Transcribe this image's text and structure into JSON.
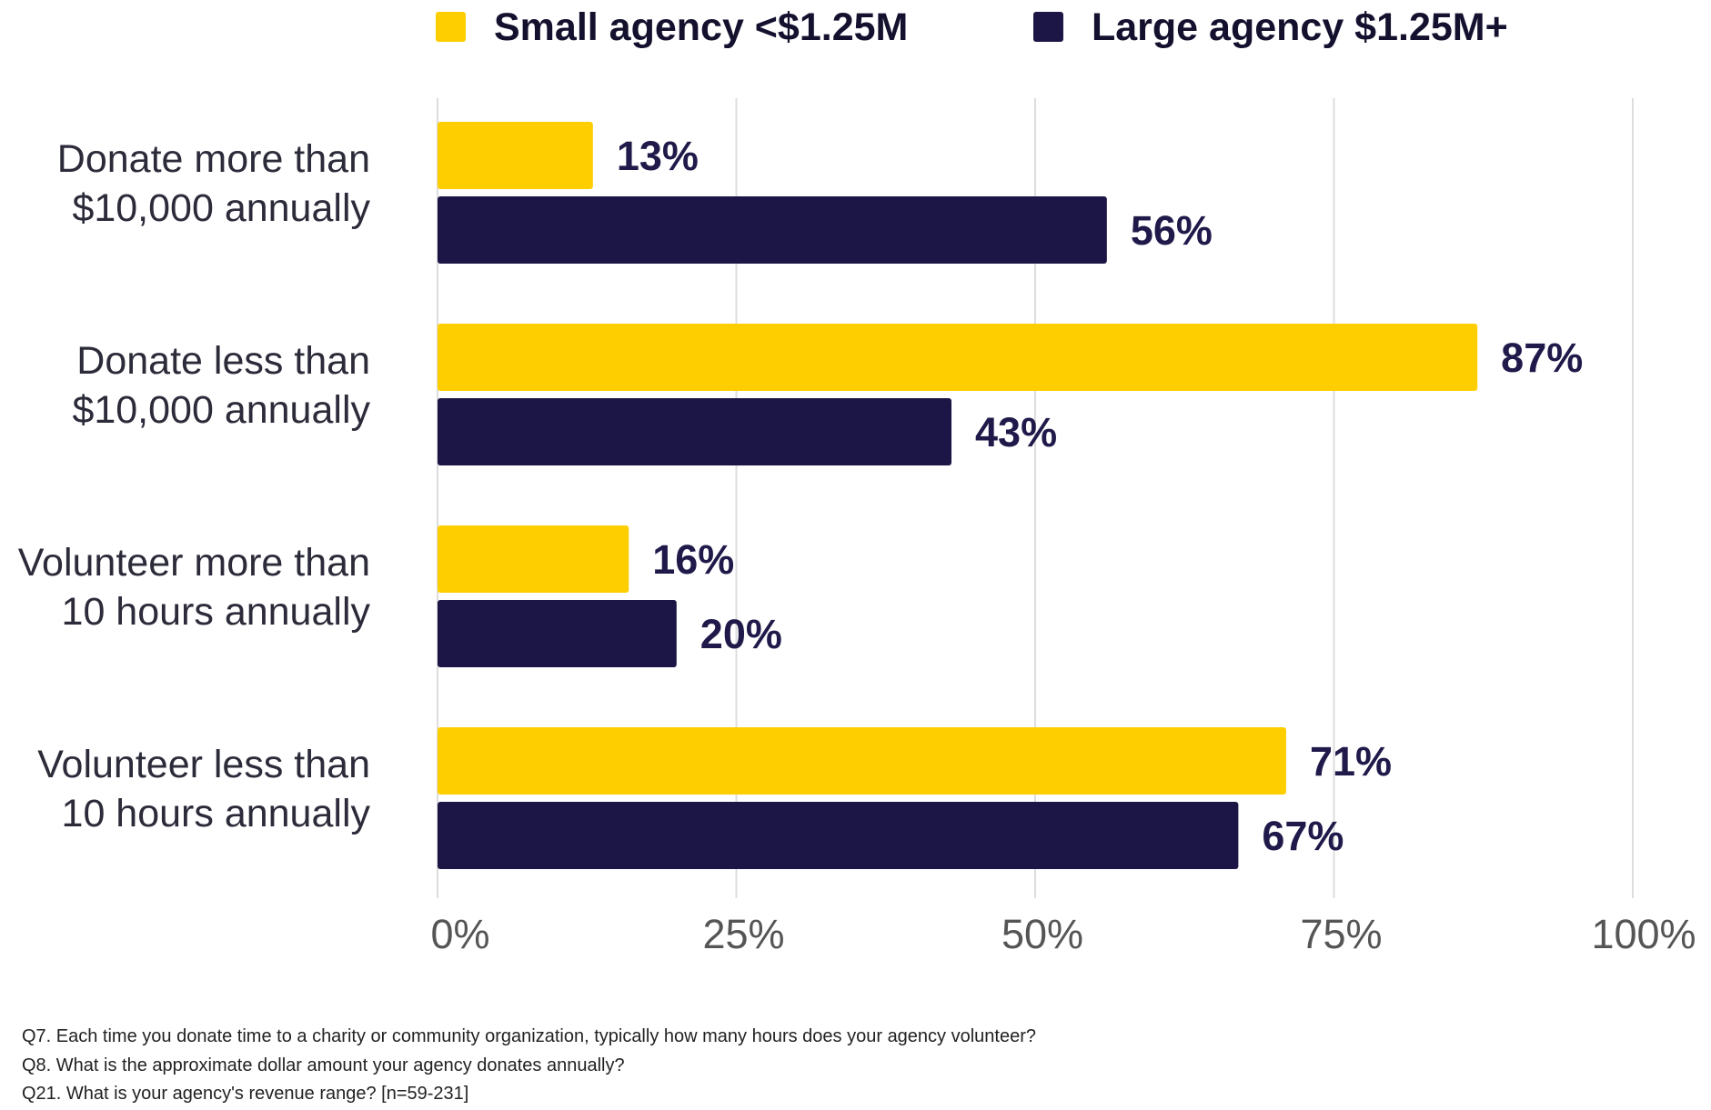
{
  "chart_data": {
    "type": "bar",
    "orientation": "horizontal",
    "categories": [
      [
        "Donate more than",
        "$10,000 annually"
      ],
      [
        "Donate less than",
        "$10,000 annually"
      ],
      [
        "Volunteer more than",
        "10 hours annually"
      ],
      [
        "Volunteer less than",
        "10 hours annually"
      ]
    ],
    "series": [
      {
        "name": "Small agency <$1.25M",
        "color": "#FFCE00",
        "values": [
          13,
          87,
          16,
          71
        ],
        "value_labels": [
          "13%",
          "87%",
          "16%",
          "71%"
        ]
      },
      {
        "name": "Large agency $1.25M+",
        "color": "#1C1646",
        "values": [
          56,
          43,
          20,
          67
        ],
        "value_labels": [
          "56%",
          "43%",
          "20%",
          "67%"
        ]
      }
    ],
    "xlim": [
      0,
      100
    ],
    "xticks": [
      0,
      25,
      50,
      75,
      100
    ],
    "xtick_labels": [
      "0%",
      "25%",
      "50%",
      "75%",
      "100%"
    ],
    "grid": true,
    "legend_position": "top"
  },
  "footnotes": [
    "Q7. Each time you donate time to a charity or community organization, typically how many hours does your agency volunteer?",
    "Q8. What is the approximate dollar amount your agency donates annually?",
    "Q21. What is your agency's revenue range? [n=59-231]"
  ]
}
